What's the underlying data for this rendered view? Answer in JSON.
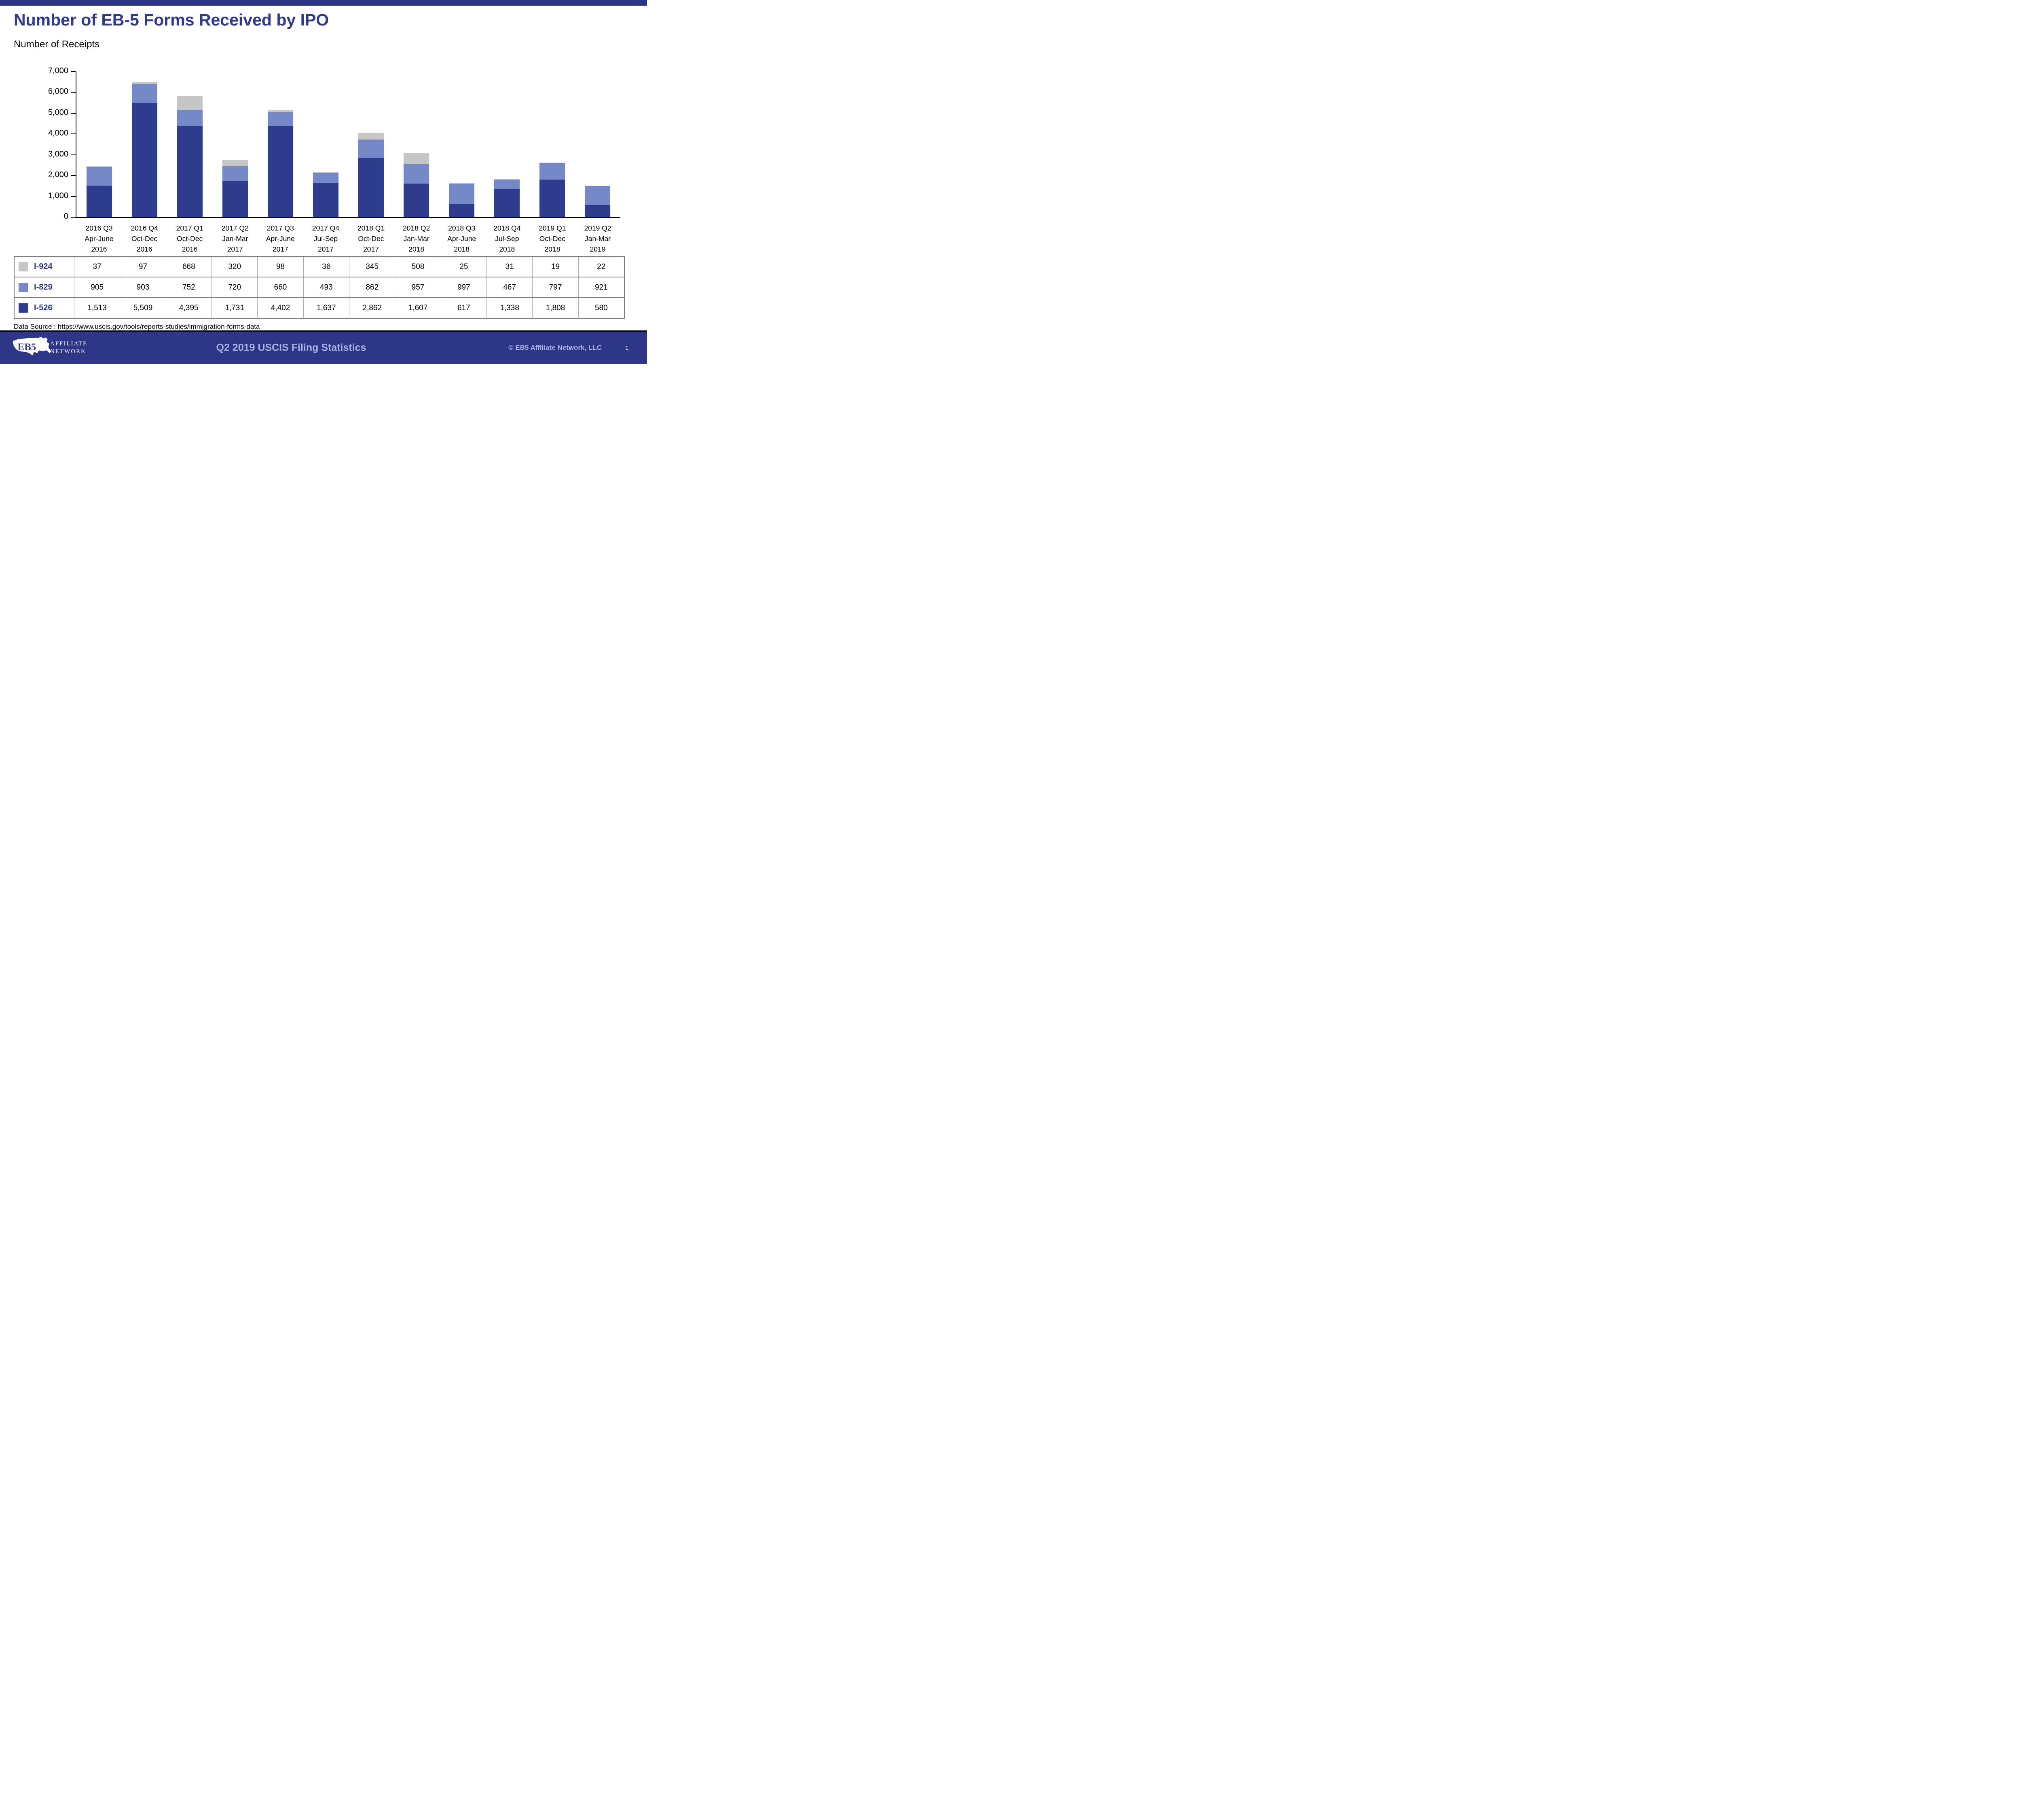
{
  "colors": {
    "band_navy": "#2C3585",
    "title_blue": "#2F3A8E",
    "bar_navy": "#2F3B8D",
    "bar_periwinkle": "#7589C8",
    "bar_gray": "#C6C6C6",
    "legend_label_navy": "#2B3990",
    "footer_bg": "#2E3687",
    "footer_text": "#A8B4DE",
    "table_border": "#7F7F7F",
    "table_border_light": "#ABABAB"
  },
  "header": {
    "title": "Number of EB-5 Forms Received by IPO",
    "subtitle": "Number of Receipts"
  },
  "chart_data": {
    "type": "bar",
    "stacked": true,
    "title": "Number of EB-5 Forms Received by IPO",
    "ylabel": "Number of Receipts",
    "xlabel": "",
    "ylim": [
      0,
      7000
    ],
    "ytick_step": 1000,
    "grid": false,
    "legend_position": "table-left",
    "categories": [
      [
        "2016 Q3",
        "Apr-June",
        "2016"
      ],
      [
        "2016 Q4",
        "Oct-Dec",
        "2016"
      ],
      [
        "2017 Q1",
        "Oct-Dec",
        "2016"
      ],
      [
        "2017 Q2",
        "Jan-Mar",
        "2017"
      ],
      [
        "2017 Q3",
        "Apr-June",
        "2017"
      ],
      [
        "2017 Q4",
        "Jul-Sep",
        "2017"
      ],
      [
        "2018 Q1",
        "Oct-Dec",
        "2017"
      ],
      [
        "2018 Q2",
        "Jan-Mar",
        "2018"
      ],
      [
        "2018 Q3",
        "Apr-June",
        "2018"
      ],
      [
        "2018 Q4",
        "Jul-Sep",
        "2018"
      ],
      [
        "2019 Q1",
        "Oct-Dec",
        "2018"
      ],
      [
        "2019 Q2",
        "Jan-Mar",
        "2019"
      ]
    ],
    "series": [
      {
        "name": "I-526",
        "color": "#2F3B8D",
        "values": [
          1513,
          5509,
          4395,
          1731,
          4402,
          1637,
          2862,
          1607,
          617,
          1338,
          1808,
          580
        ]
      },
      {
        "name": "I-829",
        "color": "#7589C8",
        "values": [
          905,
          903,
          752,
          720,
          660,
          493,
          862,
          957,
          997,
          467,
          797,
          921
        ]
      },
      {
        "name": "I-924",
        "color": "#C6C6C6",
        "values": [
          37,
          97,
          668,
          320,
          98,
          36,
          345,
          508,
          25,
          31,
          19,
          22
        ]
      }
    ]
  },
  "table": {
    "rows": [
      {
        "label": "I-924",
        "color": "#C6C6C6",
        "values": [
          "37",
          "97",
          "668",
          "320",
          "98",
          "36",
          "345",
          "508",
          "25",
          "31",
          "19",
          "22"
        ]
      },
      {
        "label": "I-829",
        "color": "#7589C8",
        "values": [
          "905",
          "903",
          "752",
          "720",
          "660",
          "493",
          "862",
          "957",
          "997",
          "467",
          "797",
          "921"
        ]
      },
      {
        "label": "I-526",
        "color": "#2F3B8D",
        "values": [
          "1,513",
          "5,509",
          "4,395",
          "1,731",
          "4,402",
          "1,637",
          "2,862",
          "1,607",
          "617",
          "1,338",
          "1,808",
          "580"
        ]
      }
    ]
  },
  "source_note": "Data Source : https://www.uscis.gov/tools/reports-studies/immigration-forms-data",
  "footer": {
    "center_title": "Q2 2019 USCIS Filing Statistics",
    "copyright": "© EB5 Affiliate Network, LLC",
    "page_number": "1",
    "logo": {
      "acronym": "EB5",
      "word1": "AFFILIATE",
      "word2": "NETWORK"
    }
  }
}
